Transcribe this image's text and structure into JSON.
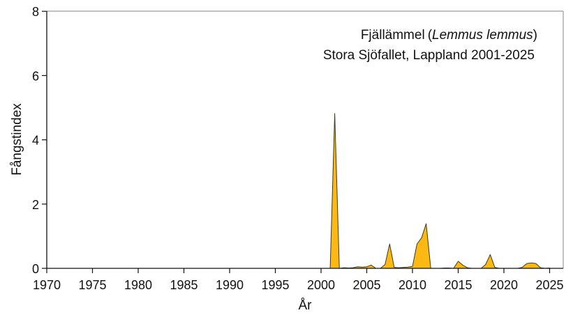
{
  "chart_data": {
    "type": "area",
    "title": "Fjällämmel (Lemmus lemmus)",
    "title_common": "Fjällämmel",
    "title_latin": "Lemmus lemmus",
    "subtitle": "Stora Sjöfallet, Lappland 2001-2025",
    "xlabel": "År",
    "ylabel": "Fångstindex",
    "xlim": [
      1970,
      2026.5
    ],
    "ylim": [
      0,
      8
    ],
    "xticks": [
      1970,
      1975,
      1980,
      1985,
      1990,
      1995,
      2000,
      2005,
      2010,
      2015,
      2020,
      2025
    ],
    "yticks": [
      0,
      2,
      4,
      6,
      8
    ],
    "grid": false,
    "legend": "none",
    "fill_color": "#FDB913",
    "line_color": "#3a3a2a",
    "series": [
      {
        "name": "Fångstindex",
        "x": [
          2001.0,
          2001.5,
          2002.0,
          2002.5,
          2003.0,
          2003.5,
          2004.0,
          2004.5,
          2005.0,
          2005.5,
          2006.0,
          2006.5,
          2007.0,
          2007.5,
          2008.0,
          2008.5,
          2009.0,
          2009.5,
          2010.0,
          2010.5,
          2011.0,
          2011.5,
          2012.0,
          2012.5,
          2013.0,
          2013.5,
          2014.0,
          2014.5,
          2015.0,
          2015.5,
          2016.0,
          2016.5,
          2017.0,
          2017.5,
          2018.0,
          2018.5,
          2019.0,
          2019.5,
          2020.0,
          2020.5,
          2021.0,
          2021.5,
          2022.0,
          2022.5,
          2023.0,
          2023.5,
          2024.0,
          2024.5,
          2025.0
        ],
        "values": [
          0.0,
          4.82,
          0.0,
          0.02,
          0.01,
          0.02,
          0.05,
          0.04,
          0.05,
          0.1,
          0.0,
          0.0,
          0.12,
          0.76,
          0.03,
          0.02,
          0.03,
          0.04,
          0.06,
          0.76,
          0.95,
          1.39,
          0.0,
          0.0,
          0.0,
          0.01,
          0.01,
          0.0,
          0.22,
          0.1,
          0.02,
          0.0,
          0.0,
          0.0,
          0.12,
          0.43,
          0.03,
          0.0,
          0.0,
          0.0,
          0.0,
          0.0,
          0.03,
          0.15,
          0.17,
          0.15,
          0.02,
          0.0,
          0.01
        ]
      }
    ]
  }
}
